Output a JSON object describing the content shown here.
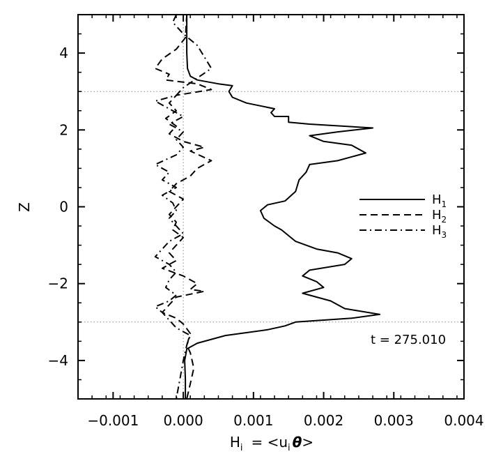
{
  "chart_data": {
    "type": "line",
    "title": "",
    "xlabel": "H",
    "xlabel_sub": "i",
    "xlabel_rhs_prefix": "= <u",
    "xlabel_rhs_sub": "i",
    "xlabel_rhs_theta": "θ",
    "xlabel_rhs_suffix": ">",
    "ylabel": "Z",
    "xlim": [
      -0.0015,
      0.004
    ],
    "ylim": [
      -5,
      5
    ],
    "xticks": [
      -0.001,
      0.0,
      0.001,
      0.002,
      0.003,
      0.004
    ],
    "xtick_labels": [
      "−0.001",
      "0.000",
      "0.001",
      "0.002",
      "0.003",
      "0.004"
    ],
    "yticks": [
      -4,
      -2,
      0,
      2,
      4
    ],
    "ytick_labels": [
      "−4",
      "−2",
      "0",
      "2",
      "4"
    ],
    "grid": false,
    "reference_lines": {
      "x": [
        0.0
      ],
      "y": [
        3,
        -3
      ]
    },
    "annotation": "t = 275.010",
    "legend_position": "right",
    "series": [
      {
        "name": "H",
        "name_sub": "1",
        "style": "solid",
        "points": [
          [
            5e-05,
            5.0
          ],
          [
            5e-05,
            4.5
          ],
          [
            5e-05,
            4.0
          ],
          [
            6e-05,
            3.6
          ],
          [
            0.0001,
            3.4
          ],
          [
            0.0002,
            3.3
          ],
          [
            0.0005,
            3.2
          ],
          [
            0.0007,
            3.15
          ],
          [
            0.00065,
            3.0
          ],
          [
            0.0007,
            2.85
          ],
          [
            0.0009,
            2.7
          ],
          [
            0.0013,
            2.55
          ],
          [
            0.00125,
            2.45
          ],
          [
            0.0013,
            2.35
          ],
          [
            0.0015,
            2.35
          ],
          [
            0.0015,
            2.2
          ],
          [
            0.0018,
            2.15
          ],
          [
            0.0027,
            2.05
          ],
          [
            0.0022,
            1.95
          ],
          [
            0.0018,
            1.85
          ],
          [
            0.002,
            1.7
          ],
          [
            0.0024,
            1.6
          ],
          [
            0.0026,
            1.4
          ],
          [
            0.0022,
            1.2
          ],
          [
            0.0018,
            1.1
          ],
          [
            0.00175,
            0.9
          ],
          [
            0.00165,
            0.7
          ],
          [
            0.0016,
            0.4
          ],
          [
            0.00145,
            0.15
          ],
          [
            0.0012,
            0.05
          ],
          [
            0.0011,
            -0.1
          ],
          [
            0.00115,
            -0.3
          ],
          [
            0.0013,
            -0.5
          ],
          [
            0.0014,
            -0.6
          ],
          [
            0.0016,
            -0.9
          ],
          [
            0.0019,
            -1.1
          ],
          [
            0.0022,
            -1.2
          ],
          [
            0.0024,
            -1.35
          ],
          [
            0.0023,
            -1.5
          ],
          [
            0.0018,
            -1.65
          ],
          [
            0.0017,
            -1.8
          ],
          [
            0.0019,
            -1.95
          ],
          [
            0.002,
            -2.1
          ],
          [
            0.0017,
            -2.25
          ],
          [
            0.0019,
            -2.35
          ],
          [
            0.0021,
            -2.45
          ],
          [
            0.0022,
            -2.55
          ],
          [
            0.0023,
            -2.65
          ],
          [
            0.0028,
            -2.8
          ],
          [
            0.0024,
            -2.9
          ],
          [
            0.0016,
            -3.0
          ],
          [
            0.00145,
            -3.1
          ],
          [
            0.0012,
            -3.2
          ],
          [
            0.0006,
            -3.35
          ],
          [
            0.0002,
            -3.55
          ],
          [
            5e-05,
            -3.7
          ],
          [
            2e-05,
            -4.0
          ],
          [
            3e-05,
            -4.5
          ],
          [
            3e-05,
            -5.0
          ]
        ]
      },
      {
        "name": "H",
        "name_sub": "2",
        "style": "dashed",
        "points": [
          [
            5e-05,
            5.0
          ],
          [
            4e-05,
            4.7
          ],
          [
            3e-05,
            4.4
          ],
          [
            -0.0001,
            4.1
          ],
          [
            -0.0003,
            3.85
          ],
          [
            -0.0004,
            3.6
          ],
          [
            -0.0002,
            3.45
          ],
          [
            -0.00025,
            3.3
          ],
          [
            0.0002,
            3.2
          ],
          [
            0.0004,
            3.05
          ],
          [
            -0.0001,
            2.9
          ],
          [
            -0.0002,
            2.7
          ],
          [
            -0.0001,
            2.5
          ],
          [
            -0.00025,
            2.3
          ],
          [
            -0.0001,
            2.1
          ],
          [
            -0.0002,
            1.9
          ],
          [
            0.0,
            1.7
          ],
          [
            0.0003,
            1.55
          ],
          [
            0.0001,
            1.45
          ],
          [
            0.0004,
            1.2
          ],
          [
            0.0002,
            1.0
          ],
          [
            0.0001,
            0.8
          ],
          [
            -0.0001,
            0.6
          ],
          [
            -0.0002,
            0.4
          ],
          [
            0.0,
            0.2
          ],
          [
            -0.0001,
            0.0
          ],
          [
            -0.0002,
            -0.2
          ],
          [
            -0.0001,
            -0.4
          ],
          [
            -0.00015,
            -0.6
          ],
          [
            0.0,
            -0.8
          ],
          [
            -0.0001,
            -1.0
          ],
          [
            -0.0002,
            -1.2
          ],
          [
            -0.0001,
            -1.4
          ],
          [
            -0.0003,
            -1.6
          ],
          [
            0.0,
            -1.8
          ],
          [
            0.0002,
            -2.0
          ],
          [
            0.0001,
            -2.15
          ],
          [
            0.0003,
            -2.2
          ],
          [
            -0.0001,
            -2.35
          ],
          [
            -0.0002,
            -2.55
          ],
          [
            -0.0003,
            -2.75
          ],
          [
            -0.0001,
            -2.9
          ],
          [
            0.0,
            -3.05
          ],
          [
            0.0001,
            -3.3
          ],
          [
            5e-05,
            -3.6
          ],
          [
            0.0001,
            -3.8
          ],
          [
            0.00015,
            -4.2
          ],
          [
            0.0001,
            -4.6
          ],
          [
            5e-05,
            -5.0
          ]
        ]
      },
      {
        "name": "H",
        "name_sub": "3",
        "style": "dashdot",
        "points": [
          [
            -0.0001,
            5.0
          ],
          [
            -0.00015,
            4.8
          ],
          [
            0.0,
            4.5
          ],
          [
            0.0002,
            4.2
          ],
          [
            0.0003,
            3.9
          ],
          [
            0.0004,
            3.6
          ],
          [
            0.0002,
            3.35
          ],
          [
            0.0,
            3.1
          ],
          [
            -0.0001,
            2.9
          ],
          [
            -0.0004,
            2.75
          ],
          [
            -0.0002,
            2.55
          ],
          [
            0.0,
            2.35
          ],
          [
            -0.0002,
            2.15
          ],
          [
            0.0,
            1.95
          ],
          [
            -0.0001,
            1.75
          ],
          [
            0.0,
            1.55
          ],
          [
            -0.0001,
            1.35
          ],
          [
            -0.0004,
            1.1
          ],
          [
            -0.0002,
            0.9
          ],
          [
            -0.0003,
            0.7
          ],
          [
            -0.0001,
            0.5
          ],
          [
            -0.0003,
            0.3
          ],
          [
            -0.00015,
            0.1
          ],
          [
            -0.0001,
            -0.1
          ],
          [
            -0.0002,
            -0.3
          ],
          [
            -0.0001,
            -0.5
          ],
          [
            0.0,
            -0.7
          ],
          [
            -0.0002,
            -0.9
          ],
          [
            -0.0003,
            -1.1
          ],
          [
            -0.0004,
            -1.3
          ],
          [
            -0.0002,
            -1.5
          ],
          [
            -0.0001,
            -1.7
          ],
          [
            -0.0002,
            -1.9
          ],
          [
            -0.00025,
            -2.1
          ],
          [
            -0.0001,
            -2.3
          ],
          [
            -0.0002,
            -2.45
          ],
          [
            -0.0004,
            -2.6
          ],
          [
            -0.0003,
            -2.75
          ],
          [
            -0.0002,
            -2.95
          ],
          [
            -0.0001,
            -3.15
          ],
          [
            0.0001,
            -3.35
          ],
          [
            5e-05,
            -3.6
          ],
          [
            0.0,
            -4.0
          ],
          [
            -5e-05,
            -4.5
          ],
          [
            -0.0001,
            -5.0
          ]
        ]
      }
    ]
  }
}
